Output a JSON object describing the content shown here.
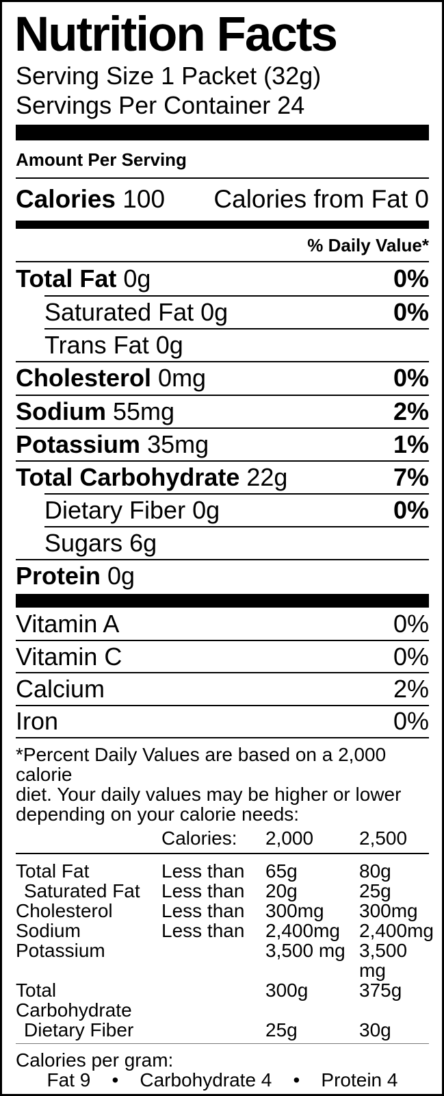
{
  "label": {
    "title": "Nutrition Facts",
    "serving_size": "Serving Size 1 Packet (32g)",
    "servings_per_container": "Servings Per Container 24",
    "amount_per_serving": "Amount Per Serving",
    "calories": {
      "label": "Calories",
      "value": "100",
      "from_fat": "Calories from Fat 0"
    },
    "daily_value_header": "% Daily Value*",
    "nutrients": [
      {
        "name": "Total Fat",
        "amount": " 0g",
        "dv": "0%"
      },
      {
        "name": "Saturated Fat",
        "amount": " 0g",
        "dv": "0%"
      },
      {
        "name": "Trans Fat",
        "amount": " 0g",
        "dv": ""
      },
      {
        "name": "Cholesterol",
        "amount": " 0mg",
        "dv": "0%"
      },
      {
        "name": "Sodium",
        "amount": " 55mg",
        "dv": "2%"
      },
      {
        "name": "Potassium",
        "amount": " 35mg",
        "dv": "1%"
      },
      {
        "name": "Total Carbohydrate",
        "amount": " 22g",
        "dv": "7%"
      },
      {
        "name": "Dietary Fiber",
        "amount": " 0g",
        "dv": "0%"
      },
      {
        "name": "Sugars",
        "amount": " 6g",
        "dv": ""
      },
      {
        "name": "Protein",
        "amount": " 0g",
        "dv": ""
      }
    ],
    "vitamins": [
      {
        "name": "Vitamin A",
        "dv": "0%"
      },
      {
        "name": "Vitamin C",
        "dv": "0%"
      },
      {
        "name": "Calcium",
        "dv": "2%"
      },
      {
        "name": "Iron",
        "dv": "0%"
      }
    ],
    "footnote_lines": [
      "*Percent Daily Values are based on a 2,000 calorie",
      "diet. Your daily values may be higher or lower",
      "depending on your calorie needs:"
    ],
    "reference_table": {
      "header": {
        "label": "Calories:",
        "col_2000": "2,000",
        "col_2500": "2,500"
      },
      "rows": [
        {
          "name": "Total Fat",
          "qualifier": "Less than",
          "v2000": "65g",
          "v2500": "80g"
        },
        {
          "name": "Saturated Fat",
          "qualifier": "Less than",
          "v2000": "20g",
          "v2500": "25g"
        },
        {
          "name": "Cholesterol",
          "qualifier": "Less than",
          "v2000": "300mg",
          "v2500": "300mg"
        },
        {
          "name": "Sodium",
          "qualifier": "Less than",
          "v2000": "2,400mg",
          "v2500": "2,400mg"
        },
        {
          "name": "Potassium",
          "qualifier": "",
          "v2000": "3,500 mg",
          "v2500": "3,500 mg"
        },
        {
          "name": "Total Carbohydrate",
          "qualifier": "",
          "v2000": "300g",
          "v2500": "375g"
        },
        {
          "name": "Dietary Fiber",
          "qualifier": "",
          "v2000": "25g",
          "v2500": "30g"
        }
      ]
    },
    "calories_per_gram": {
      "label": "Calories per gram:",
      "values": "Fat 9    •    Carbohydrate 4    •    Protein 4"
    }
  },
  "colors": {
    "text": "#000000",
    "background": "#ffffff",
    "rule": "#000000"
  }
}
